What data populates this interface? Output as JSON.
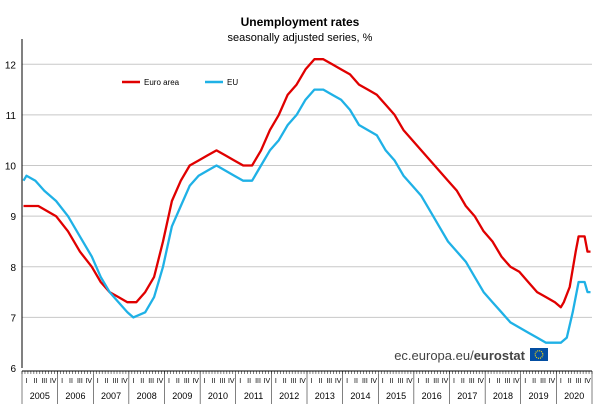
{
  "chart_data": {
    "type": "line",
    "title": "Unemployment rates",
    "subtitle": "seasonally adjusted series, %",
    "source": "ec.europa.eu/",
    "brand": "eurostat",
    "colors": {
      "euro_area": "#e00000",
      "eu": "#1fb1e6",
      "grid": "#c8c8c8"
    },
    "grid": true,
    "legend_position": "top-left",
    "ylim": [
      6,
      12.5
    ],
    "yticks": [
      6,
      7,
      8,
      9,
      10,
      11,
      12
    ],
    "x_start": "2005-01",
    "x_end": "2020-12",
    "year_labels": [
      "2005",
      "2006",
      "2007",
      "2008",
      "2009",
      "2010",
      "2011",
      "2012",
      "2013",
      "2014",
      "2015",
      "2016",
      "2017",
      "2018",
      "2019",
      "2020"
    ],
    "quarter_labels": [
      "I",
      "II",
      "III",
      "IV"
    ],
    "series": [
      {
        "name": "Euro area",
        "color": "#e00000",
        "points": [
          [
            "2005-01",
            9.2
          ],
          [
            "2005-06",
            9.2
          ],
          [
            "2005-09",
            9.1
          ],
          [
            "2005-12",
            9.0
          ],
          [
            "2006-04",
            8.7
          ],
          [
            "2006-08",
            8.3
          ],
          [
            "2006-12",
            8.0
          ],
          [
            "2007-03",
            7.7
          ],
          [
            "2007-06",
            7.5
          ],
          [
            "2007-09",
            7.4
          ],
          [
            "2007-12",
            7.3
          ],
          [
            "2008-03",
            7.3
          ],
          [
            "2008-06",
            7.5
          ],
          [
            "2008-09",
            7.8
          ],
          [
            "2008-12",
            8.5
          ],
          [
            "2009-03",
            9.3
          ],
          [
            "2009-06",
            9.7
          ],
          [
            "2009-09",
            10.0
          ],
          [
            "2009-12",
            10.1
          ],
          [
            "2010-03",
            10.2
          ],
          [
            "2010-06",
            10.3
          ],
          [
            "2010-09",
            10.2
          ],
          [
            "2010-12",
            10.1
          ],
          [
            "2011-03",
            10.0
          ],
          [
            "2011-06",
            10.0
          ],
          [
            "2011-09",
            10.3
          ],
          [
            "2011-12",
            10.7
          ],
          [
            "2012-03",
            11.0
          ],
          [
            "2012-06",
            11.4
          ],
          [
            "2012-09",
            11.6
          ],
          [
            "2012-12",
            11.9
          ],
          [
            "2013-03",
            12.1
          ],
          [
            "2013-06",
            12.1
          ],
          [
            "2013-09",
            12.0
          ],
          [
            "2013-12",
            11.9
          ],
          [
            "2014-03",
            11.8
          ],
          [
            "2014-06",
            11.6
          ],
          [
            "2014-09",
            11.5
          ],
          [
            "2014-12",
            11.4
          ],
          [
            "2015-03",
            11.2
          ],
          [
            "2015-06",
            11.0
          ],
          [
            "2015-09",
            10.7
          ],
          [
            "2015-12",
            10.5
          ],
          [
            "2016-03",
            10.3
          ],
          [
            "2016-06",
            10.1
          ],
          [
            "2016-09",
            9.9
          ],
          [
            "2016-12",
            9.7
          ],
          [
            "2017-03",
            9.5
          ],
          [
            "2017-06",
            9.2
          ],
          [
            "2017-09",
            9.0
          ],
          [
            "2017-12",
            8.7
          ],
          [
            "2018-03",
            8.5
          ],
          [
            "2018-06",
            8.2
          ],
          [
            "2018-09",
            8.0
          ],
          [
            "2018-12",
            7.9
          ],
          [
            "2019-03",
            7.7
          ],
          [
            "2019-06",
            7.5
          ],
          [
            "2019-09",
            7.4
          ],
          [
            "2019-12",
            7.3
          ],
          [
            "2020-02",
            7.2
          ],
          [
            "2020-03",
            7.3
          ],
          [
            "2020-05",
            7.6
          ],
          [
            "2020-07",
            8.3
          ],
          [
            "2020-08",
            8.6
          ],
          [
            "2020-10",
            8.6
          ],
          [
            "2020-11",
            8.3
          ],
          [
            "2020-12",
            8.3
          ]
        ]
      },
      {
        "name": "EU",
        "color": "#1fb1e6",
        "points": [
          [
            "2005-01",
            9.7
          ],
          [
            "2005-02",
            9.8
          ],
          [
            "2005-05",
            9.7
          ],
          [
            "2005-08",
            9.5
          ],
          [
            "2005-12",
            9.3
          ],
          [
            "2006-04",
            9.0
          ],
          [
            "2006-08",
            8.6
          ],
          [
            "2006-12",
            8.2
          ],
          [
            "2007-03",
            7.8
          ],
          [
            "2007-06",
            7.5
          ],
          [
            "2007-09",
            7.3
          ],
          [
            "2007-12",
            7.1
          ],
          [
            "2008-02",
            7.0
          ],
          [
            "2008-06",
            7.1
          ],
          [
            "2008-09",
            7.4
          ],
          [
            "2008-12",
            8.0
          ],
          [
            "2009-03",
            8.8
          ],
          [
            "2009-06",
            9.2
          ],
          [
            "2009-09",
            9.6
          ],
          [
            "2009-12",
            9.8
          ],
          [
            "2010-03",
            9.9
          ],
          [
            "2010-06",
            10.0
          ],
          [
            "2010-09",
            9.9
          ],
          [
            "2010-12",
            9.8
          ],
          [
            "2011-03",
            9.7
          ],
          [
            "2011-06",
            9.7
          ],
          [
            "2011-09",
            10.0
          ],
          [
            "2011-12",
            10.3
          ],
          [
            "2012-03",
            10.5
          ],
          [
            "2012-06",
            10.8
          ],
          [
            "2012-09",
            11.0
          ],
          [
            "2012-12",
            11.3
          ],
          [
            "2013-03",
            11.5
          ],
          [
            "2013-06",
            11.5
          ],
          [
            "2013-09",
            11.4
          ],
          [
            "2013-12",
            11.3
          ],
          [
            "2014-03",
            11.1
          ],
          [
            "2014-06",
            10.8
          ],
          [
            "2014-09",
            10.7
          ],
          [
            "2014-12",
            10.6
          ],
          [
            "2015-03",
            10.3
          ],
          [
            "2015-06",
            10.1
          ],
          [
            "2015-09",
            9.8
          ],
          [
            "2015-12",
            9.6
          ],
          [
            "2016-03",
            9.4
          ],
          [
            "2016-06",
            9.1
          ],
          [
            "2016-09",
            8.8
          ],
          [
            "2016-12",
            8.5
          ],
          [
            "2017-03",
            8.3
          ],
          [
            "2017-06",
            8.1
          ],
          [
            "2017-09",
            7.8
          ],
          [
            "2017-12",
            7.5
          ],
          [
            "2018-03",
            7.3
          ],
          [
            "2018-06",
            7.1
          ],
          [
            "2018-09",
            6.9
          ],
          [
            "2018-12",
            6.8
          ],
          [
            "2019-03",
            6.7
          ],
          [
            "2019-06",
            6.6
          ],
          [
            "2019-09",
            6.5
          ],
          [
            "2019-12",
            6.5
          ],
          [
            "2020-02",
            6.5
          ],
          [
            "2020-04",
            6.6
          ],
          [
            "2020-06",
            7.1
          ],
          [
            "2020-08",
            7.7
          ],
          [
            "2020-10",
            7.7
          ],
          [
            "2020-11",
            7.5
          ],
          [
            "2020-12",
            7.5
          ]
        ]
      }
    ]
  }
}
